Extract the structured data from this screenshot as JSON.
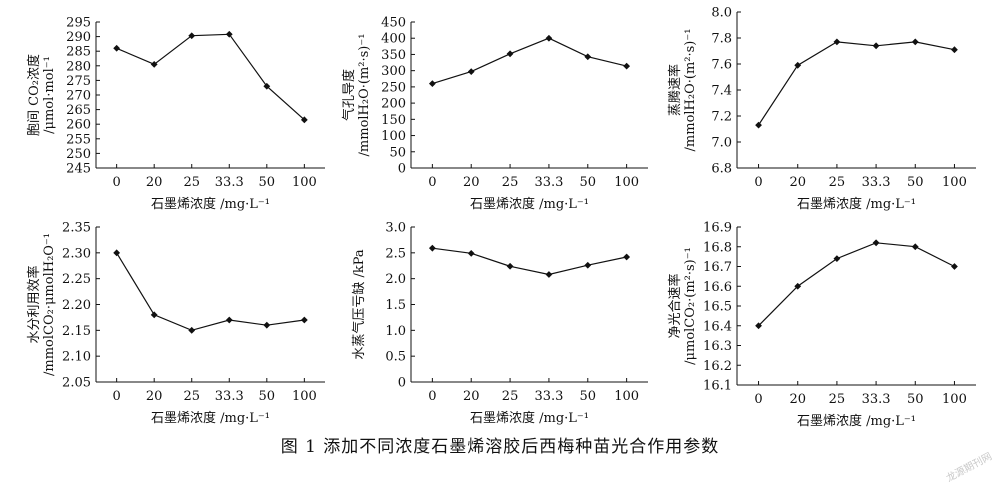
{
  "figure_caption": "图 1  添加不同浓度石墨烯溶胶后西梅种苗光合作用参数",
  "watermark": "龙源期刊网",
  "chart_data": [
    {
      "type": "line",
      "ylabel": [
        "胞间 CO₂浓度",
        "/μmol·mol⁻¹"
      ],
      "xlabel": "石墨烯浓度 /mg·L⁻¹",
      "categories": [
        "0",
        "20",
        "25",
        "33.3",
        "50",
        "100"
      ],
      "values": [
        286,
        280.5,
        290.3,
        290.8,
        273,
        261.5
      ],
      "ylim": [
        245,
        295
      ],
      "yticks": [
        "245",
        "250",
        "255",
        "260",
        "265",
        "270",
        "275",
        "280",
        "285",
        "290",
        "295"
      ]
    },
    {
      "type": "line",
      "ylabel": [
        "气孔导度",
        "/mmolH₂O·(m²·s)⁻¹"
      ],
      "xlabel": "石墨烯浓度 /mg·L⁻¹",
      "categories": [
        "0",
        "20",
        "25",
        "33.3",
        "50",
        "100"
      ],
      "values": [
        260,
        297,
        352,
        400,
        343,
        314
      ],
      "ylim": [
        0,
        450
      ],
      "yticks": [
        "0",
        "50",
        "100",
        "150",
        "200",
        "250",
        "300",
        "350",
        "400",
        "450"
      ]
    },
    {
      "type": "line",
      "ylabel": [
        "蒸腾速率",
        "/mmolH₂O·(m²·s)⁻¹"
      ],
      "xlabel": "石墨烯浓度 /mg·L⁻¹",
      "categories": [
        "0",
        "20",
        "25",
        "33.3",
        "50",
        "100"
      ],
      "values": [
        7.13,
        7.59,
        7.77,
        7.74,
        7.77,
        7.71
      ],
      "ylim": [
        6.8,
        8.0
      ],
      "yticks": [
        "6.8",
        "7.0",
        "7.2",
        "7.4",
        "7.6",
        "7.8",
        "8.0"
      ]
    },
    {
      "type": "line",
      "ylabel": [
        "水分利用效率",
        "/mmolCO₂·μmolH₂O⁻¹"
      ],
      "xlabel": "石墨烯浓度 /mg·L⁻¹",
      "categories": [
        "0",
        "20",
        "25",
        "33.3",
        "50",
        "100"
      ],
      "values": [
        2.3,
        2.18,
        2.15,
        2.17,
        2.16,
        2.17
      ],
      "ylim": [
        2.05,
        2.35
      ],
      "yticks": [
        "2.05",
        "2.10",
        "2.15",
        "2.20",
        "2.25",
        "2.30",
        "2.35"
      ]
    },
    {
      "type": "line",
      "ylabel": [
        "水蒸气压亏缺 /kPa"
      ],
      "xlabel": "石墨烯浓度 /mg·L⁻¹",
      "categories": [
        "0",
        "20",
        "25",
        "33.3",
        "50",
        "100"
      ],
      "values": [
        2.59,
        2.49,
        2.24,
        2.08,
        2.26,
        2.42
      ],
      "ylim": [
        0,
        3.0
      ],
      "yticks": [
        "0",
        "0.5",
        "1.0",
        "1.5",
        "2.0",
        "2.5",
        "3.0"
      ]
    },
    {
      "type": "line",
      "ylabel": [
        "净光合速率",
        "/μmolCO₂·(m²·s)⁻¹"
      ],
      "xlabel": "石墨烯浓度 /mg·L⁻¹",
      "categories": [
        "0",
        "20",
        "25",
        "33.3",
        "50",
        "100"
      ],
      "values": [
        16.4,
        16.6,
        16.74,
        16.82,
        16.8,
        16.7
      ],
      "ylim": [
        16.1,
        16.9
      ],
      "yticks": [
        "16.1",
        "16.2",
        "16.3",
        "16.4",
        "16.5",
        "16.6",
        "16.7",
        "16.8",
        "16.9"
      ]
    }
  ]
}
